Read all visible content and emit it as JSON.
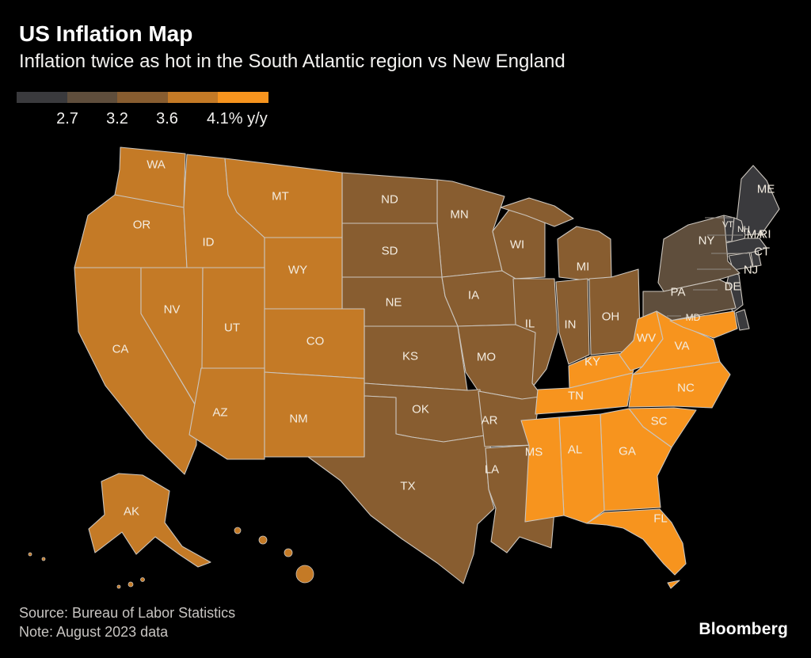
{
  "header": {
    "title": "US Inflation Map",
    "subtitle": "Inflation twice as hot in the South Atlantic region vs New England"
  },
  "legend": {
    "tick_labels": [
      "2.7",
      "3.2",
      "3.6",
      "4.1% y/y"
    ],
    "colors": [
      "#3a3a3d",
      "#5f4e3c",
      "#885d30",
      "#c47a26",
      "#f7941e"
    ]
  },
  "footer": {
    "source": "Source: Bureau of Labor Statistics",
    "note": "Note: August 2023 data",
    "brand": "Bloomberg"
  },
  "chart_data": {
    "type": "heatmap",
    "subtype": "choropleth-us-states",
    "title": "US Inflation Map",
    "subtitle": "Inflation twice as hot in the South Atlantic region vs New England",
    "unit": "% y/y",
    "legend_breaks": [
      2.7,
      3.2,
      3.6,
      4.1
    ],
    "legend_colors": [
      "#3a3a3d",
      "#5f4e3c",
      "#885d30",
      "#c47a26",
      "#f7941e"
    ],
    "legend_position": "top-left",
    "groups": [
      {
        "label": "below 2.7",
        "color": "#3a3a3d",
        "states": [
          "ME",
          "VT",
          "NH",
          "MA",
          "RI",
          "CT",
          "NJ",
          "DE"
        ]
      },
      {
        "label": "2.7 to 3.2",
        "color": "#5f4e3c",
        "states": [
          "NY",
          "PA"
        ]
      },
      {
        "label": "3.2 to 3.6",
        "color": "#885d30",
        "states": [
          "MN",
          "WI",
          "MI",
          "ND",
          "SD",
          "NE",
          "IA",
          "IL",
          "IN",
          "OH",
          "MO",
          "KS",
          "OK",
          "TX",
          "AR",
          "LA"
        ]
      },
      {
        "label": "3.6 to 4.1",
        "color": "#c47a26",
        "states": [
          "WA",
          "OR",
          "CA",
          "NV",
          "ID",
          "MT",
          "WY",
          "UT",
          "CO",
          "AZ",
          "NM",
          "AK",
          "HI"
        ]
      },
      {
        "label": "4.1 and above",
        "color": "#f7941e",
        "states": [
          "KY",
          "TN",
          "WV",
          "VA",
          "MD",
          "NC",
          "SC",
          "GA",
          "AL",
          "MS",
          "FL"
        ]
      }
    ],
    "source": "Bureau of Labor Statistics",
    "note": "August 2023 data"
  }
}
